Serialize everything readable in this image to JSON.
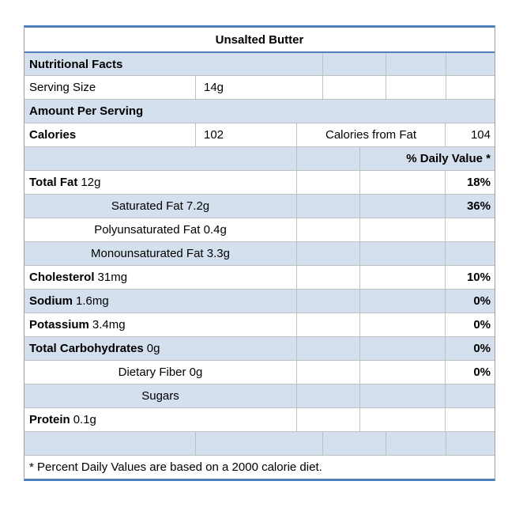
{
  "table": {
    "title": "Unsalted Butter",
    "colors": {
      "accent_border": "#4F81BD",
      "band_fill": "#D5E0EE",
      "gridline": "#C0C0C0",
      "side_border": "#9E9E9E",
      "text": "#000000"
    },
    "sections": {
      "nutritional_facts": "Nutritional Facts",
      "amount_per_serving": "Amount Per Serving",
      "daily_value_header": "% Daily Value *"
    },
    "serving": {
      "label": "Serving Size",
      "value": "14g"
    },
    "calories": {
      "label": "Calories",
      "value": "102",
      "from_fat_label": "Calories from Fat",
      "from_fat_value": "104"
    },
    "nutrients": {
      "total_fat": {
        "name": "Total Fat",
        "amount": "12g",
        "daily_value": "18%"
      },
      "saturated_fat": {
        "label": "Saturated Fat 7.2g",
        "daily_value": "36%"
      },
      "polyunsaturated_fat": {
        "label": "Polyunsaturated Fat 0.4g"
      },
      "monounsaturated_fat": {
        "label": "Monounsaturated Fat 3.3g"
      },
      "cholesterol": {
        "name": "Cholesterol",
        "amount": "31mg",
        "daily_value": "10%"
      },
      "sodium": {
        "name": "Sodium",
        "amount": "1.6mg",
        "daily_value": "0%"
      },
      "potassium": {
        "name": "Potassium",
        "amount": "3.4mg",
        "daily_value": "0%"
      },
      "total_carbohydrates": {
        "name": "Total Carbohydrates",
        "amount": "0g",
        "daily_value": "0%"
      },
      "dietary_fiber": {
        "label": "Dietary Fiber 0g",
        "daily_value": "0%"
      },
      "sugars": {
        "label": "Sugars"
      },
      "protein": {
        "name": "Protein",
        "amount": "0.1g"
      }
    },
    "footnote": "* Percent Daily Values are based on a 2000 calorie diet."
  }
}
